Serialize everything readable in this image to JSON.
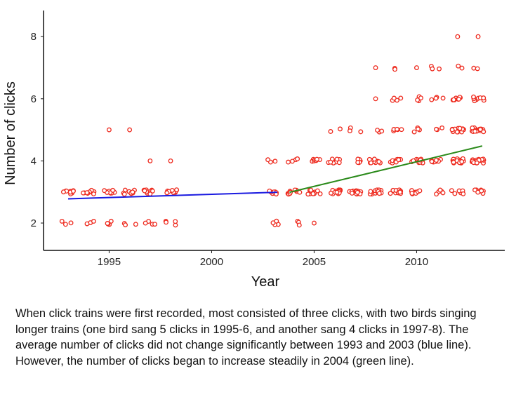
{
  "chart_data": {
    "type": "scatter",
    "title": "",
    "xlabel": "Year",
    "ylabel": "Number of clicks",
    "xlim": [
      1991.8,
      2014.3
    ],
    "ylim": [
      1.12,
      8.84
    ],
    "xticks": [
      1995,
      2000,
      2005,
      2010
    ],
    "yticks": [
      2,
      4,
      6,
      8
    ],
    "jitter": true,
    "grid": false,
    "point_color": "#ee2a1e",
    "points_by_year": [
      {
        "year": 1993,
        "counts": {
          "2": 3,
          "3": 10
        }
      },
      {
        "year": 1994,
        "counts": {
          "2": 3,
          "3": 10
        }
      },
      {
        "year": 1995,
        "counts": {
          "2": 4,
          "3": 12,
          "5": 1
        }
      },
      {
        "year": 1996,
        "counts": {
          "2": 3,
          "3": 10,
          "5": 1
        }
      },
      {
        "year": 1997,
        "counts": {
          "2": 4,
          "3": 10,
          "4": 1
        }
      },
      {
        "year": 1998,
        "counts": {
          "2": 4,
          "3": 12,
          "4": 1
        }
      },
      {
        "year": 2003,
        "counts": {
          "2": 4,
          "3": 8,
          "4": 3
        }
      },
      {
        "year": 2004,
        "counts": {
          "2": 3,
          "3": 10,
          "4": 4
        }
      },
      {
        "year": 2005,
        "counts": {
          "2": 1,
          "3": 12,
          "4": 8
        }
      },
      {
        "year": 2006,
        "counts": {
          "3": 15,
          "4": 10,
          "5": 2
        }
      },
      {
        "year": 2007,
        "counts": {
          "3": 15,
          "4": 8,
          "5": 3
        }
      },
      {
        "year": 2008,
        "counts": {
          "3": 15,
          "4": 12,
          "5": 3,
          "6": 1,
          "7": 1
        }
      },
      {
        "year": 2009,
        "counts": {
          "3": 15,
          "4": 12,
          "5": 5,
          "6": 4,
          "7": 2
        }
      },
      {
        "year": 2010,
        "counts": {
          "3": 10,
          "4": 12,
          "5": 4,
          "6": 4,
          "7": 1
        }
      },
      {
        "year": 2011,
        "counts": {
          "3": 5,
          "4": 10,
          "5": 3,
          "6": 4,
          "7": 3
        }
      },
      {
        "year": 2012,
        "counts": {
          "3": 6,
          "4": 20,
          "5": 15,
          "6": 8,
          "7": 2,
          "8": 1
        }
      },
      {
        "year": 2013,
        "counts": {
          "3": 8,
          "4": 20,
          "5": 15,
          "6": 8,
          "7": 2,
          "8": 1
        }
      }
    ],
    "trend_lines": [
      {
        "color": "#1a1ae0",
        "x": [
          1993.0,
          2003.2
        ],
        "y": [
          2.78,
          2.99
        ]
      },
      {
        "color": "#2a8a1a",
        "x": [
          2003.8,
          2013.2
        ],
        "y": [
          2.99,
          4.48
        ]
      }
    ]
  },
  "caption": "When click trains were first recorded, most consisted of three clicks, with two birds singing longer trains (one bird sang 5 clicks in 1995-6, and another sang 4 clicks in 1997-8). The average number of clicks did not change significantly between 1993 and 2003 (blue line). However, the number of clicks began to increase steadily in 2004 (green line)."
}
